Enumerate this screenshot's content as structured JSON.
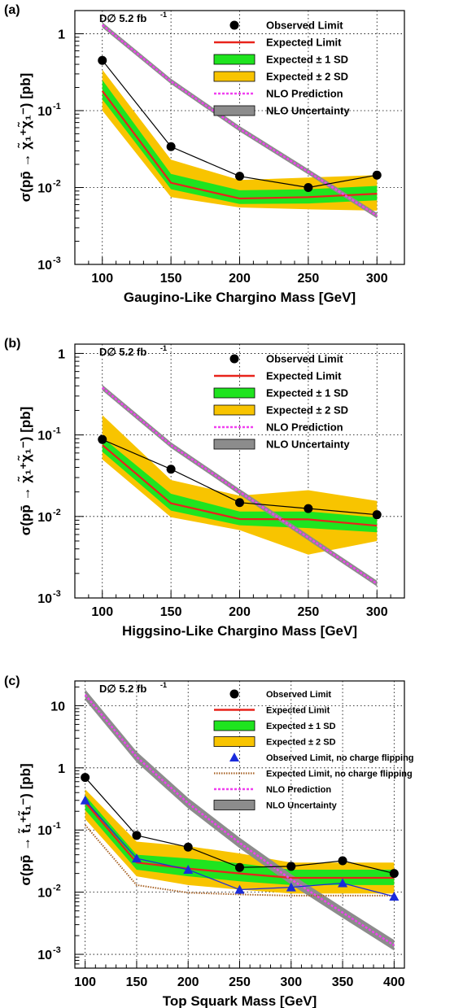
{
  "chart_data": [
    {
      "type": "line",
      "panel_label": "(a)",
      "experiment_label": "D∅ 5.2 fb",
      "experiment_sup": "-1",
      "xlabel": "Gaugino-Like Chargino Mass [GeV]",
      "ylabel": "σ(pp̄ → χ̃₁⁺χ̃₁⁻) [pb]",
      "xlim": [
        80,
        320
      ],
      "ylim": [
        0.001,
        2
      ],
      "yscale": "log",
      "grid": true,
      "legend_position": "top-right",
      "x_ticks": [
        100,
        150,
        200,
        250,
        300
      ],
      "y_ticks": [
        {
          "v": 1,
          "label": "1"
        },
        {
          "v": 0.1,
          "label": "10",
          "sup": "-1"
        },
        {
          "v": 0.01,
          "label": "10",
          "sup": "-2"
        },
        {
          "v": 0.001,
          "label": "10",
          "sup": "-3"
        }
      ],
      "x": [
        100,
        150,
        200,
        250,
        300
      ],
      "observed": [
        0.45,
        0.034,
        0.014,
        0.01,
        0.0145
      ],
      "expected": [
        0.18,
        0.0115,
        0.0072,
        0.0075,
        0.0083
      ],
      "sd1_low": [
        0.14,
        0.0095,
        0.0061,
        0.0062,
        0.0068
      ],
      "sd1_high": [
        0.25,
        0.015,
        0.0092,
        0.0095,
        0.0105
      ],
      "sd2_low": [
        0.1,
        0.0075,
        0.0055,
        0.0052,
        0.005
      ],
      "sd2_high": [
        0.34,
        0.023,
        0.0125,
        0.0135,
        0.0145
      ],
      "nlo_x": [
        100,
        150,
        200,
        250,
        300
      ],
      "nlo": [
        1.3,
        0.24,
        0.058,
        0.016,
        0.0043
      ],
      "nlo_width": 0.035,
      "legend": [
        "Observed Limit",
        "Expected Limit",
        "Expected ± 1 SD",
        "Expected ± 2 SD",
        "NLO Prediction",
        "NLO Uncertainty"
      ]
    },
    {
      "type": "line",
      "panel_label": "(b)",
      "experiment_label": "D∅ 5.2 fb",
      "experiment_sup": "-1",
      "xlabel": "Higgsino-Like Chargino Mass [GeV]",
      "ylabel": "σ(pp̄ → χ̃₁⁺χ̃₁⁻) [pb]",
      "xlim": [
        80,
        320
      ],
      "ylim": [
        0.001,
        1.3
      ],
      "yscale": "log",
      "grid": true,
      "legend_position": "top-right",
      "x_ticks": [
        100,
        150,
        200,
        250,
        300
      ],
      "y_ticks": [
        {
          "v": 1,
          "label": "1"
        },
        {
          "v": 0.1,
          "label": "10",
          "sup": "-1"
        },
        {
          "v": 0.01,
          "label": "10",
          "sup": "-2"
        },
        {
          "v": 0.001,
          "label": "10",
          "sup": "-3"
        }
      ],
      "x": [
        100,
        150,
        200,
        250,
        300
      ],
      "observed": [
        0.088,
        0.038,
        0.0148,
        0.0125,
        0.0105
      ],
      "expected": [
        0.075,
        0.0145,
        0.0093,
        0.0092,
        0.0077
      ],
      "sd1_low": [
        0.062,
        0.0118,
        0.0078,
        0.0072,
        0.0064
      ],
      "sd1_high": [
        0.093,
        0.019,
        0.0115,
        0.0115,
        0.0097
      ],
      "sd2_low": [
        0.05,
        0.0098,
        0.0068,
        0.0034,
        0.005
      ],
      "sd2_high": [
        0.175,
        0.028,
        0.018,
        0.021,
        0.0155
      ],
      "nlo_x": [
        100,
        150,
        200,
        250,
        300
      ],
      "nlo": [
        0.38,
        0.075,
        0.02,
        0.0055,
        0.0015
      ],
      "nlo_width": 0.035,
      "legend": [
        "Observed Limit",
        "Expected Limit",
        "Expected ± 1 SD",
        "Expected ± 2 SD",
        "NLO Prediction",
        "NLO Uncertainty"
      ]
    },
    {
      "type": "line",
      "panel_label": "(c)",
      "experiment_label": "D∅ 5.2 fb",
      "experiment_sup": "-1",
      "xlabel": "Top Squark Mass [GeV]",
      "ylabel": "σ(pp̄ → t̃₁⁺t̃₁⁻) [pb]",
      "xlim": [
        90,
        410
      ],
      "ylim": [
        0.0006,
        25
      ],
      "yscale": "log",
      "grid": true,
      "legend_position": "top-right",
      "x_ticks": [
        100,
        150,
        200,
        250,
        300,
        350,
        400
      ],
      "y_ticks": [
        {
          "v": 10,
          "label": "10"
        },
        {
          "v": 1,
          "label": "1"
        },
        {
          "v": 0.1,
          "label": "10",
          "sup": "-1"
        },
        {
          "v": 0.01,
          "label": "10",
          "sup": "-2"
        },
        {
          "v": 0.001,
          "label": "10",
          "sup": "-3"
        }
      ],
      "x": [
        100,
        150,
        200,
        250,
        300,
        350,
        400
      ],
      "observed": [
        0.7,
        0.082,
        0.053,
        0.025,
        0.026,
        0.032,
        0.02
      ],
      "expected": [
        0.28,
        0.03,
        0.024,
        0.02,
        0.017,
        0.017,
        0.017
      ],
      "sd1_low": [
        0.21,
        0.023,
        0.018,
        0.015,
        0.013,
        0.013,
        0.013
      ],
      "sd1_high": [
        0.36,
        0.04,
        0.035,
        0.029,
        0.023,
        0.023,
        0.023
      ],
      "sd2_low": [
        0.15,
        0.018,
        0.013,
        0.011,
        0.0095,
        0.0095,
        0.0095
      ],
      "sd2_high": [
        0.45,
        0.065,
        0.055,
        0.042,
        0.03,
        0.03,
        0.03
      ],
      "observed_no_flip": [
        0.3,
        0.035,
        0.023,
        0.011,
        0.012,
        0.014,
        0.0085
      ],
      "expected_no_flip": [
        0.12,
        0.013,
        0.0098,
        0.0092,
        0.0088,
        0.0088,
        0.0088
      ],
      "nlo_x": [
        100,
        150,
        200,
        250,
        300,
        350,
        400
      ],
      "nlo": [
        15,
        1.5,
        0.27,
        0.062,
        0.016,
        0.0047,
        0.0014
      ],
      "nlo_width": 0.085,
      "legend": [
        "Observed Limit",
        "Expected Limit",
        "Expected ± 1 SD",
        "Expected ± 2 SD",
        "Observed Limit, no charge flipping",
        "Expected Limit, no charge flipping",
        "NLO Prediction",
        "NLO Uncertainty"
      ]
    }
  ],
  "colors": {
    "observed": "#000000",
    "expected": "#e8231b",
    "sd1": "#1fe41f",
    "sd2": "#f8c400",
    "nlo": "#f040f0",
    "nlo_band": "#8c8c8c",
    "no_flip_observed": "#1a2bdc",
    "no_flip_expected": "#a86428"
  }
}
